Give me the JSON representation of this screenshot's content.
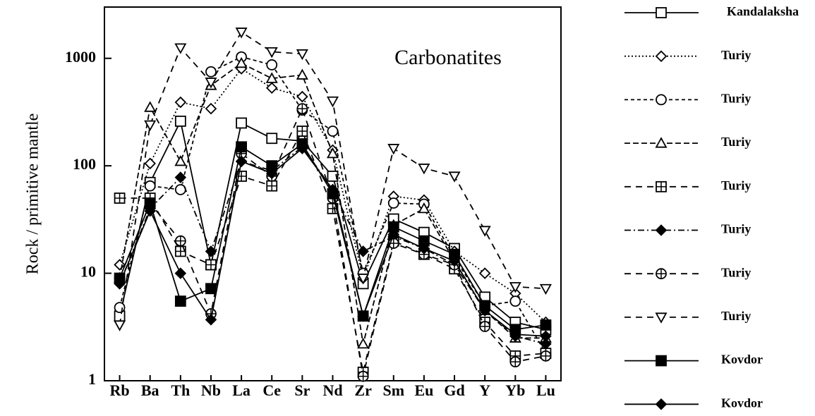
{
  "chart_data": {
    "type": "line",
    "annotation": "Carbonatites",
    "y_label": "Rock / primitive mantle",
    "log_y": true,
    "ylim": [
      1,
      3000
    ],
    "yticks": [
      1,
      10,
      100,
      1000
    ],
    "categories": [
      "Rb",
      "Ba",
      "Th",
      "Nb",
      "La",
      "Ce",
      "Sr",
      "Nd",
      "Zr",
      "Sm",
      "Eu",
      "Gd",
      "Y",
      "Yb",
      "Lu"
    ],
    "series": [
      {
        "name": "Kandalaksha",
        "color": "#000000",
        "marker": "square-open",
        "linestyle": "solid",
        "values": [
          4,
          70,
          260,
          12,
          250,
          180,
          170,
          80,
          8,
          32,
          24,
          17,
          6,
          3.5,
          3
        ]
      },
      {
        "name": "Turiy",
        "color": "#000000",
        "marker": "diamond-open",
        "linestyle": "dotted",
        "values": [
          12,
          105,
          390,
          340,
          800,
          530,
          440,
          140,
          9,
          52,
          48,
          16,
          10,
          6.5,
          3.5
        ]
      },
      {
        "name": "Turiy",
        "color": "#000000",
        "marker": "circle-open",
        "linestyle": "shortdash",
        "values": [
          4.8,
          65,
          60,
          750,
          1030,
          870,
          330,
          210,
          10,
          45,
          44,
          14,
          5,
          5.5,
          1.8
        ]
      },
      {
        "name": "Turiy",
        "color": "#000000",
        "marker": "triangle-open",
        "linestyle": "dashed",
        "values": [
          9,
          350,
          110,
          560,
          900,
          650,
          700,
          130,
          2.2,
          28,
          40,
          13,
          4.5,
          2.5,
          2.5
        ]
      },
      {
        "name": "Turiy",
        "color": "#000000",
        "marker": "square-plus",
        "linestyle": "longdash",
        "values": [
          50,
          50,
          16,
          12,
          80,
          65,
          210,
          40,
          1.2,
          20,
          15,
          11,
          3.5,
          1.7,
          1.8
        ]
      },
      {
        "name": "Turiy",
        "color": "#000000",
        "marker": "diamond-filled",
        "linestyle": "dashdot",
        "values": [
          8,
          40,
          78,
          16,
          110,
          90,
          150,
          60,
          16,
          22,
          17,
          12,
          4.5,
          2.6,
          2.2
        ]
      },
      {
        "name": "Turiy",
        "color": "#000000",
        "marker": "circle-plus",
        "linestyle": "longdash",
        "values": [
          9,
          45,
          20,
          4.2,
          130,
          80,
          340,
          50,
          1.1,
          19,
          15,
          12,
          3.2,
          1.5,
          1.7
        ]
      },
      {
        "name": "Turiy",
        "color": "#000000",
        "marker": "triangle-down-open",
        "linestyle": "longdash",
        "values": [
          3.3,
          240,
          1250,
          600,
          1750,
          1150,
          1100,
          400,
          9,
          145,
          95,
          80,
          25,
          7.5,
          7.2
        ]
      },
      {
        "name": "Kovdor",
        "color": "#000000",
        "marker": "square-filled",
        "linestyle": "solid",
        "values": [
          9,
          45,
          5.5,
          7.2,
          150,
          100,
          160,
          55,
          4,
          27,
          20,
          15,
          5,
          3,
          3.3
        ]
      },
      {
        "name": "Kovdor",
        "color": "#000000",
        "marker": "diamond-filled",
        "linestyle": "solid",
        "values": [
          8,
          38,
          10,
          3.7,
          110,
          85,
          145,
          60,
          4,
          23,
          17,
          13,
          4.5,
          2.7,
          2.6
        ]
      }
    ]
  }
}
